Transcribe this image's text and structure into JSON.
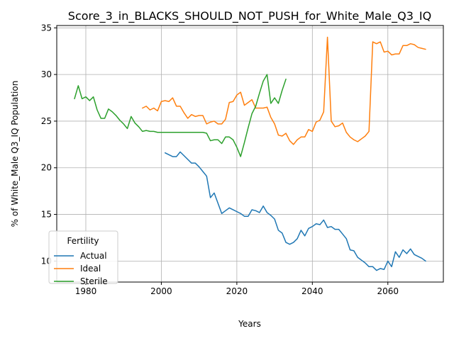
{
  "chart_data": {
    "type": "line",
    "title": "Score_3_in_BLACKS_SHOULD_NOT_PUSH_for_White_Male_Q3_IQ",
    "xlabel": "Years",
    "ylabel": "% of White_Male Q3_IQ Population",
    "xlim": [
      1972.3,
      2074.7
    ],
    "ylim": [
      7.75,
      35.25
    ],
    "xticks": [
      1980,
      2000,
      2020,
      2040,
      2060
    ],
    "xtick_labels": [
      "1980",
      "2000",
      "2020",
      "2040",
      "2060"
    ],
    "yticks": [
      10,
      15,
      20,
      25,
      30,
      35
    ],
    "ytick_labels": [
      "10",
      "15",
      "20",
      "25",
      "30",
      "35"
    ],
    "grid": true,
    "legend": {
      "title": "Fertility",
      "position": "lower-left"
    },
    "series": [
      {
        "name": "Actual",
        "color": "#1f77b4",
        "x": [
          2001,
          2002,
          2003,
          2004,
          2005,
          2006,
          2007,
          2008,
          2009,
          2010,
          2011,
          2012,
          2013,
          2014,
          2015,
          2016,
          2017,
          2018,
          2019,
          2020,
          2021,
          2022,
          2023,
          2024,
          2025,
          2026,
          2027,
          2028,
          2029,
          2030,
          2031,
          2032,
          2033,
          2034,
          2035,
          2036,
          2037,
          2038,
          2039,
          2040,
          2041,
          2042,
          2043,
          2044,
          2045,
          2046,
          2047,
          2048,
          2049,
          2050,
          2051,
          2052,
          2053,
          2054,
          2055,
          2056,
          2057,
          2058,
          2059,
          2060,
          2061,
          2062,
          2063,
          2064,
          2065,
          2066,
          2067,
          2068,
          2069,
          2070
        ],
        "values": [
          21.6,
          21.4,
          21.2,
          21.2,
          21.7,
          21.3,
          20.9,
          20.5,
          20.5,
          20.1,
          19.6,
          19.1,
          16.8,
          17.3,
          16.2,
          15.1,
          15.4,
          15.7,
          15.5,
          15.3,
          15.1,
          14.8,
          14.8,
          15.5,
          15.4,
          15.2,
          15.9,
          15.2,
          14.9,
          14.5,
          13.3,
          13.0,
          12.0,
          11.8,
          12.0,
          12.4,
          13.3,
          12.7,
          13.5,
          13.7,
          14.0,
          13.9,
          14.4,
          13.6,
          13.7,
          13.4,
          13.4,
          12.9,
          12.4,
          11.2,
          11.1,
          10.4,
          10.1,
          9.8,
          9.4,
          9.4,
          9.0,
          9.2,
          9.1,
          10.0,
          9.4,
          11.0,
          10.4,
          11.2,
          10.8,
          11.3,
          10.7,
          10.5,
          10.3,
          10.0
        ]
      },
      {
        "name": "Ideal",
        "color": "#ff7f0e",
        "x": [
          1995,
          1996,
          1997,
          1998,
          1999,
          2000,
          2001,
          2002,
          2003,
          2004,
          2005,
          2006,
          2007,
          2008,
          2009,
          2010,
          2011,
          2012,
          2013,
          2014,
          2015,
          2016,
          2017,
          2018,
          2019,
          2020,
          2021,
          2022,
          2023,
          2024,
          2025,
          2026,
          2027,
          2028,
          2029,
          2030,
          2031,
          2032,
          2033,
          2034,
          2035,
          2036,
          2037,
          2038,
          2039,
          2040,
          2041,
          2042,
          2043,
          2044,
          2045,
          2046,
          2047,
          2048,
          2049,
          2050,
          2051,
          2052,
          2053,
          2054,
          2055,
          2056,
          2057,
          2058,
          2059,
          2060,
          2061,
          2062,
          2063,
          2064,
          2065,
          2066,
          2067,
          2068,
          2069,
          2070
        ],
        "values": [
          26.4,
          26.6,
          26.2,
          26.4,
          26.1,
          27.1,
          27.2,
          27.1,
          27.5,
          26.6,
          26.6,
          25.9,
          25.3,
          25.7,
          25.5,
          25.6,
          25.6,
          24.7,
          24.9,
          25.0,
          24.7,
          24.7,
          25.2,
          27.0,
          27.1,
          27.8,
          28.1,
          26.7,
          27.0,
          27.3,
          26.4,
          26.4,
          26.4,
          26.5,
          25.4,
          24.7,
          23.5,
          23.4,
          23.7,
          22.9,
          22.5,
          23.0,
          23.3,
          23.3,
          24.1,
          23.9,
          24.9,
          25.1,
          26.0,
          34.0,
          25.0,
          24.4,
          24.5,
          24.8,
          23.8,
          23.3,
          23.0,
          22.8,
          23.1,
          23.4,
          23.9,
          33.5,
          33.3,
          33.5,
          32.4,
          32.5,
          32.1,
          32.2,
          32.2,
          33.1,
          33.1,
          33.3,
          33.2,
          32.9,
          32.8,
          32.7
        ]
      },
      {
        "name": "Sterile",
        "color": "#2ca02c",
        "x": [
          1977,
          1978,
          1979,
          1980,
          1981,
          1982,
          1983,
          1984,
          1985,
          1986,
          1987,
          1988,
          1989,
          1990,
          1991,
          1992,
          1993,
          1994,
          1995,
          1996,
          1997,
          1998,
          1999,
          2000,
          2001,
          2002,
          2003,
          2004,
          2005,
          2006,
          2007,
          2008,
          2009,
          2010,
          2011,
          2012,
          2013,
          2014,
          2015,
          2016,
          2017,
          2018,
          2019,
          2020,
          2021,
          2022,
          2023,
          2024,
          2025,
          2026,
          2027,
          2028,
          2029,
          2030,
          2031,
          2032,
          2033
        ],
        "values": [
          27.4,
          28.8,
          27.4,
          27.6,
          27.2,
          27.6,
          26.2,
          25.3,
          25.3,
          26.3,
          26.0,
          25.6,
          25.1,
          24.7,
          24.2,
          25.5,
          24.8,
          24.4,
          23.9,
          24.0,
          23.9,
          23.9,
          23.8,
          23.8,
          23.8,
          23.8,
          23.8,
          23.8,
          23.8,
          23.8,
          23.8,
          23.8,
          23.8,
          23.8,
          23.8,
          23.7,
          22.9,
          23.0,
          23.0,
          22.6,
          23.3,
          23.3,
          23.0,
          22.2,
          21.2,
          22.7,
          24.3,
          25.8,
          26.6,
          28.0,
          29.3,
          30.0,
          26.9,
          27.5,
          26.9,
          28.3,
          29.5
        ]
      }
    ]
  }
}
